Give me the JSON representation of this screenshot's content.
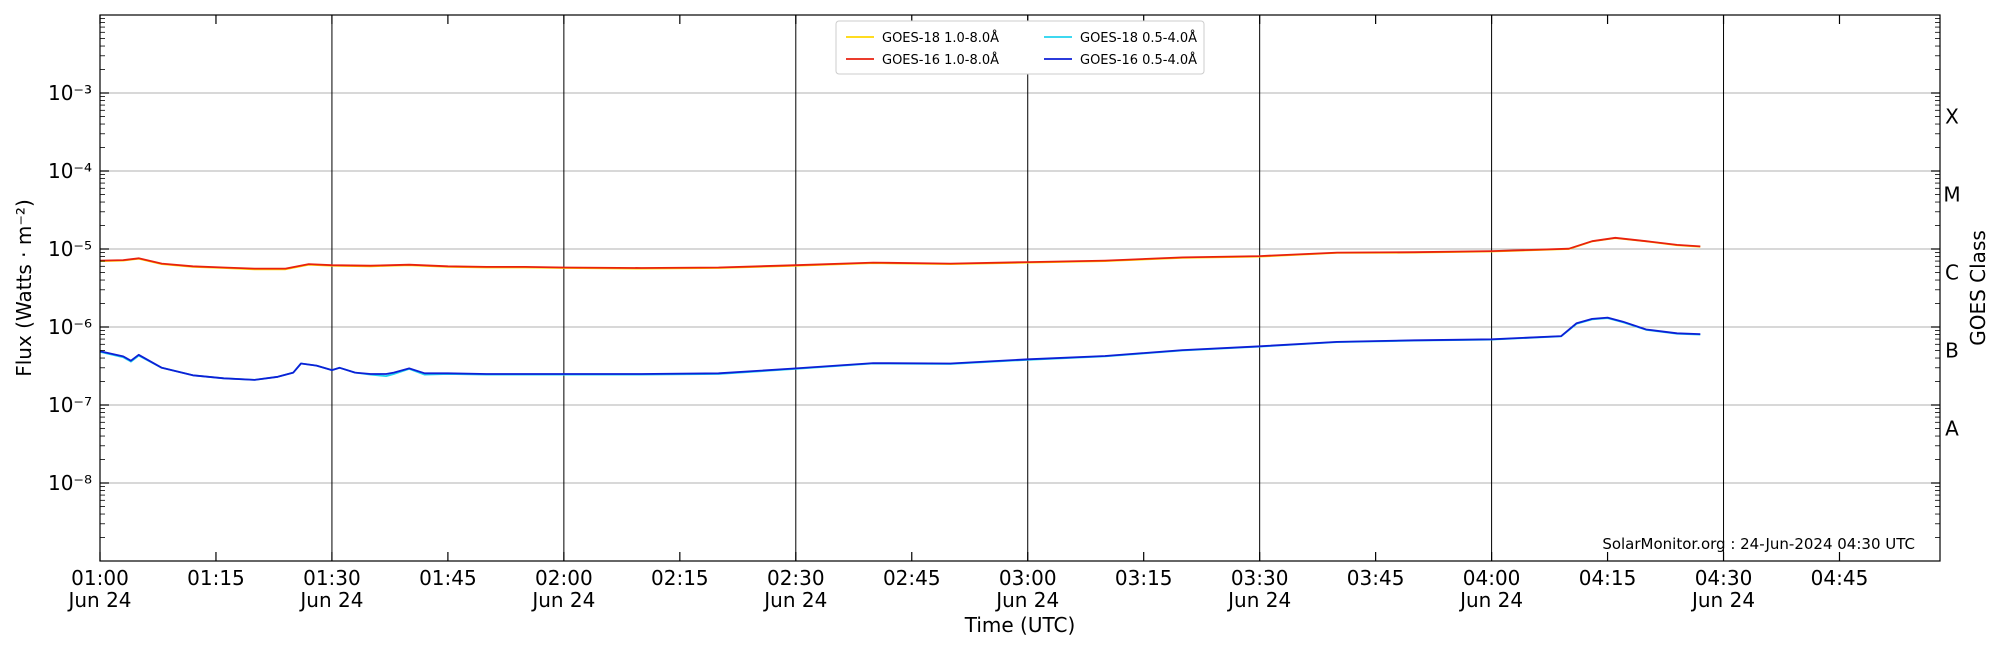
{
  "chart_data": {
    "type": "line",
    "title": "",
    "xlabel": "Time (UTC)",
    "ylabel": "Flux (Watts · m⁻²)",
    "right_label": "GOES Class",
    "y_scale": "log",
    "ylim": [
      1e-09,
      0.01
    ],
    "x_range": [
      "01:00",
      "04:58"
    ],
    "grid": "horizontal lines at decades; vertical lines at half-hours",
    "legend_position": "top-center",
    "x_ticks": [
      {
        "time": "01:00",
        "label": "01:00",
        "sublabel": "Jun 24"
      },
      {
        "time": "01:15",
        "label": "01:15",
        "sublabel": ""
      },
      {
        "time": "01:30",
        "label": "01:30",
        "sublabel": "Jun 24"
      },
      {
        "time": "01:45",
        "label": "01:45",
        "sublabel": ""
      },
      {
        "time": "02:00",
        "label": "02:00",
        "sublabel": "Jun 24"
      },
      {
        "time": "02:15",
        "label": "02:15",
        "sublabel": ""
      },
      {
        "time": "02:30",
        "label": "02:30",
        "sublabel": "Jun 24"
      },
      {
        "time": "02:45",
        "label": "02:45",
        "sublabel": ""
      },
      {
        "time": "03:00",
        "label": "03:00",
        "sublabel": "Jun 24"
      },
      {
        "time": "03:15",
        "label": "03:15",
        "sublabel": ""
      },
      {
        "time": "03:30",
        "label": "03:30",
        "sublabel": "Jun 24"
      },
      {
        "time": "03:45",
        "label": "03:45",
        "sublabel": ""
      },
      {
        "time": "04:00",
        "label": "04:00",
        "sublabel": "Jun 24"
      },
      {
        "time": "04:15",
        "label": "04:15",
        "sublabel": ""
      },
      {
        "time": "04:30",
        "label": "04:30",
        "sublabel": "Jun 24"
      },
      {
        "time": "04:45",
        "label": "04:45",
        "sublabel": ""
      }
    ],
    "y_ticks": [
      {
        "exp": -8,
        "label": "10⁻⁸"
      },
      {
        "exp": -7,
        "label": "10⁻⁷"
      },
      {
        "exp": -6,
        "label": "10⁻⁶"
      },
      {
        "exp": -5,
        "label": "10⁻⁵"
      },
      {
        "exp": -4,
        "label": "10⁻⁴"
      },
      {
        "exp": -3,
        "label": "10⁻³"
      }
    ],
    "goes_classes": [
      {
        "label": "A",
        "value": 5e-08
      },
      {
        "label": "B",
        "value": 5e-07
      },
      {
        "label": "C",
        "value": 5e-06
      },
      {
        "label": "M",
        "value": 5e-05
      },
      {
        "label": "X",
        "value": 0.0005
      }
    ],
    "series": [
      {
        "name": "GOES-18 1.0-8.0Å",
        "color": "#ffd700",
        "x": [
          "01:00",
          "01:03",
          "01:05",
          "01:08",
          "01:12",
          "01:16",
          "01:20",
          "01:24",
          "01:27",
          "01:30",
          "01:35",
          "01:40",
          "01:45",
          "01:50",
          "01:55",
          "02:00",
          "02:10",
          "02:20",
          "02:30",
          "02:40",
          "02:50",
          "03:00",
          "03:10",
          "03:20",
          "03:30",
          "03:40",
          "03:50",
          "04:00",
          "04:10",
          "04:13",
          "04:16",
          "04:20",
          "04:24",
          "04:27"
        ],
        "y": [
          7e-06,
          7.1e-06,
          7.5e-06,
          6.4e-06,
          5.9e-06,
          5.7e-06,
          5.5e-06,
          5.5e-06,
          6.3e-06,
          6.1e-06,
          6e-06,
          6.2e-06,
          5.9e-06,
          5.8e-06,
          5.8e-06,
          5.7e-06,
          5.6e-06,
          5.7e-06,
          6.1e-06,
          6.6e-06,
          6.4e-06,
          6.7e-06,
          7e-06,
          7.7e-06,
          8e-06,
          8.9e-06,
          9e-06,
          9.3e-06,
          1e-05,
          1.25e-05,
          1.38e-05,
          1.25e-05,
          1.12e-05,
          1.07e-05
        ]
      },
      {
        "name": "GOES-16 1.0-8.0Å",
        "color": "#e8210f",
        "x": [
          "01:00",
          "01:03",
          "01:05",
          "01:08",
          "01:12",
          "01:16",
          "01:20",
          "01:24",
          "01:27",
          "01:30",
          "01:35",
          "01:40",
          "01:45",
          "01:50",
          "01:55",
          "02:00",
          "02:10",
          "02:20",
          "02:30",
          "02:40",
          "02:50",
          "03:00",
          "03:10",
          "03:20",
          "03:30",
          "03:40",
          "03:50",
          "04:00",
          "04:10",
          "04:13",
          "04:16",
          "04:20",
          "04:24",
          "04:27"
        ],
        "y": [
          7.1e-06,
          7.2e-06,
          7.6e-06,
          6.5e-06,
          6e-06,
          5.8e-06,
          5.6e-06,
          5.6e-06,
          6.4e-06,
          6.2e-06,
          6.1e-06,
          6.3e-06,
          6e-06,
          5.9e-06,
          5.9e-06,
          5.8e-06,
          5.7e-06,
          5.8e-06,
          6.2e-06,
          6.7e-06,
          6.5e-06,
          6.8e-06,
          7.1e-06,
          7.8e-06,
          8.1e-06,
          9e-06,
          9.1e-06,
          9.4e-06,
          1.01e-05,
          1.26e-05,
          1.39e-05,
          1.26e-05,
          1.13e-05,
          1.08e-05
        ]
      },
      {
        "name": "GOES-18 0.5-4.0Å",
        "color": "#22d3ee",
        "x": [
          "01:00",
          "01:03",
          "01:04",
          "01:05",
          "01:08",
          "01:12",
          "01:16",
          "01:20",
          "01:23",
          "01:25",
          "01:26",
          "01:28",
          "01:30",
          "01:31",
          "01:33",
          "01:35",
          "01:37",
          "01:38",
          "01:40",
          "01:42",
          "01:45",
          "01:50",
          "01:55",
          "02:00",
          "02:10",
          "02:20",
          "02:30",
          "02:40",
          "02:50",
          "03:00",
          "03:10",
          "03:20",
          "03:30",
          "03:40",
          "03:50",
          "04:00",
          "04:09",
          "04:11",
          "04:13",
          "04:15",
          "04:17",
          "04:20",
          "04:24",
          "04:27"
        ],
        "y": [
          4.8e-07,
          4.1e-07,
          3.6e-07,
          4.3e-07,
          3e-07,
          2.4e-07,
          2.2e-07,
          2.1e-07,
          2.3e-07,
          2.6e-07,
          3.4e-07,
          3.2e-07,
          2.8e-07,
          3e-07,
          2.6e-07,
          2.45e-07,
          2.35e-07,
          2.5e-07,
          2.9e-07,
          2.45e-07,
          2.5e-07,
          2.45e-07,
          2.45e-07,
          2.45e-07,
          2.45e-07,
          2.5e-07,
          2.9e-07,
          3.4e-07,
          3.35e-07,
          3.8e-07,
          4.2e-07,
          5e-07,
          5.6e-07,
          6.4e-07,
          6.7e-07,
          6.9e-07,
          7.6e-07,
          1.1e-06,
          1.25e-06,
          1.3e-06,
          1.15e-06,
          9.2e-07,
          8.2e-07,
          8e-07
        ]
      },
      {
        "name": "GOES-16 0.5-4.0Å",
        "color": "#0d1fd6",
        "x": [
          "01:00",
          "01:03",
          "01:04",
          "01:05",
          "01:08",
          "01:12",
          "01:16",
          "01:20",
          "01:23",
          "01:25",
          "01:26",
          "01:28",
          "01:30",
          "01:31",
          "01:33",
          "01:35",
          "01:37",
          "01:38",
          "01:40",
          "01:42",
          "01:45",
          "01:50",
          "01:55",
          "02:00",
          "02:10",
          "02:20",
          "02:30",
          "02:40",
          "02:50",
          "03:00",
          "03:10",
          "03:20",
          "03:30",
          "03:40",
          "03:50",
          "04:00",
          "04:09",
          "04:11",
          "04:13",
          "04:15",
          "04:17",
          "04:20",
          "04:24",
          "04:27"
        ],
        "y": [
          4.9e-07,
          4.2e-07,
          3.7e-07,
          4.4e-07,
          3e-07,
          2.4e-07,
          2.2e-07,
          2.1e-07,
          2.3e-07,
          2.6e-07,
          3.4e-07,
          3.2e-07,
          2.8e-07,
          3e-07,
          2.6e-07,
          2.5e-07,
          2.5e-07,
          2.6e-07,
          2.95e-07,
          2.55e-07,
          2.55e-07,
          2.5e-07,
          2.5e-07,
          2.5e-07,
          2.5e-07,
          2.55e-07,
          2.95e-07,
          3.45e-07,
          3.4e-07,
          3.85e-07,
          4.25e-07,
          5.05e-07,
          5.65e-07,
          6.45e-07,
          6.75e-07,
          6.95e-07,
          7.65e-07,
          1.12e-06,
          1.27e-06,
          1.32e-06,
          1.17e-06,
          9.3e-07,
          8.3e-07,
          8.1e-07
        ]
      }
    ],
    "credit": "SolarMonitor.org : 24-Jun-2024 04:30 UTC"
  }
}
